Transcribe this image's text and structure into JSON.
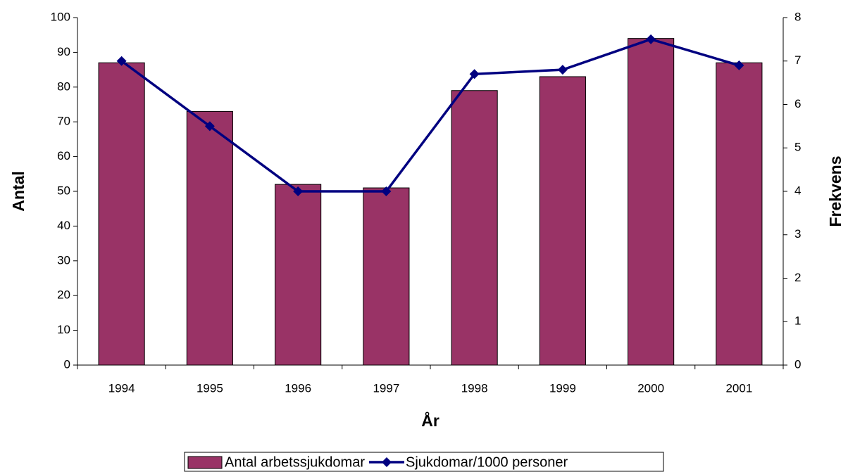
{
  "chart_data": {
    "type": "bar",
    "x_label": "År",
    "y_label": "Antal",
    "y2_label": "Frekvens",
    "categories": [
      "1994",
      "1995",
      "1996",
      "1997",
      "1998",
      "1999",
      "2000",
      "2001"
    ],
    "series": [
      {
        "name": "Antal arbetssjukdomar",
        "color": "#993366",
        "values": [
          87,
          73,
          52,
          51,
          79,
          83,
          94,
          87
        ]
      },
      {
        "name": "Sjukdomar/1000 personer",
        "color": "#000080",
        "type": "line",
        "axis": "y2",
        "values": [
          7.0,
          5.5,
          4.0,
          4.0,
          6.7,
          6.8,
          7.5,
          6.9
        ]
      }
    ],
    "ylim": [
      0,
      100
    ],
    "yticks": [
      0,
      10,
      20,
      30,
      40,
      50,
      60,
      70,
      80,
      90,
      100
    ],
    "y2lim": [
      0,
      8
    ],
    "y2ticks": [
      0,
      1,
      2,
      3,
      4,
      5,
      6,
      7,
      8
    ],
    "grid": false,
    "legend": "bottom"
  }
}
